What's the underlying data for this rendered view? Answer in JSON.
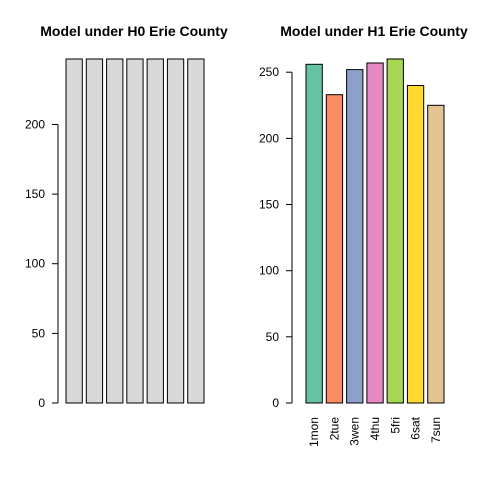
{
  "chart_data": [
    {
      "type": "bar",
      "title": "Model under H0 Erie County",
      "categories": [
        "1mon",
        "2tue",
        "3wen",
        "4thu",
        "5fri",
        "6sat",
        "7sun"
      ],
      "show_category_labels": false,
      "values": [
        247,
        247,
        247,
        247,
        247,
        247,
        247
      ],
      "colors": [
        "#d9d9d9",
        "#d9d9d9",
        "#d9d9d9",
        "#d9d9d9",
        "#d9d9d9",
        "#d9d9d9",
        "#d9d9d9"
      ],
      "yticks": [
        0,
        50,
        100,
        150,
        200
      ],
      "ylim": [
        0,
        247
      ],
      "xlabel": "",
      "ylabel": "",
      "grid": false
    },
    {
      "type": "bar",
      "title": "Model under H1 Erie County",
      "categories": [
        "1mon",
        "2tue",
        "3wen",
        "4thu",
        "5fri",
        "6sat",
        "7sun"
      ],
      "show_category_labels": true,
      "values": [
        256,
        233,
        252,
        257,
        260,
        240,
        225
      ],
      "colors": [
        "#66c2a5",
        "#fc8d62",
        "#8da0cb",
        "#e78ac3",
        "#a6d854",
        "#ffd92f",
        "#e5c494"
      ],
      "yticks": [
        0,
        50,
        100,
        150,
        200,
        250
      ],
      "ylim": [
        0,
        260
      ],
      "xlabel": "",
      "ylabel": "",
      "grid": false
    }
  ]
}
